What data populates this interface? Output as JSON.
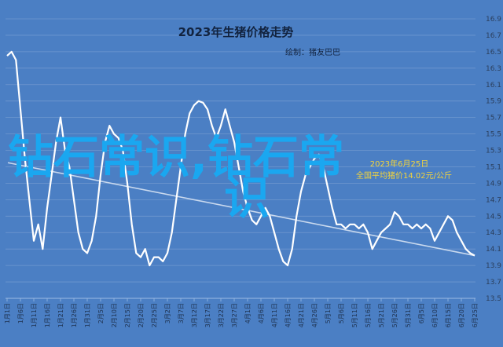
{
  "chart_data": {
    "type": "line",
    "title": "2023年生猪价格走势",
    "subtitle": "绘制：猪友巴巴",
    "annotation": [
      "2023年6月25日",
      "全国平均猪价14.02元/公斤"
    ],
    "watermark": [
      "钻石常识,钻石常",
      "识"
    ],
    "xlabel": "",
    "ylabel": "",
    "ylim": [
      13.5,
      16.9
    ],
    "yticks": [
      13.5,
      13.7,
      13.9,
      14.1,
      14.3,
      14.5,
      14.7,
      14.9,
      15.1,
      15.3,
      15.5,
      15.7,
      15.9,
      16.1,
      16.3,
      16.5,
      16.7,
      16.9
    ],
    "xticks": [
      "1月1日",
      "1月6日",
      "1月11日",
      "1月16日",
      "1月21日",
      "1月26日",
      "1月31日",
      "2月5日",
      "2月10日",
      "2月15日",
      "2月20日",
      "2月25日",
      "3月2日",
      "3月7日",
      "3月12日",
      "3月17日",
      "3月22日",
      "3月27日",
      "4月1日",
      "4月6日",
      "4月11日",
      "4月16日",
      "4月21日",
      "4月26日",
      "5月1日",
      "5月6日",
      "5月11日",
      "5月16日",
      "5月21日",
      "5月26日",
      "5月31日",
      "6月5日",
      "6月10日",
      "6月15日",
      "6月20日",
      "6月25日"
    ],
    "series": [
      {
        "color": "#ffffff",
        "values": [
          16.45,
          16.5,
          16.4,
          15.8,
          15.2,
          14.7,
          14.2,
          14.4,
          14.1,
          14.6,
          15.0,
          15.4,
          15.7,
          15.3,
          15.1,
          14.7,
          14.3,
          14.1,
          14.05,
          14.2,
          14.5,
          15.0,
          15.4,
          15.6,
          15.5,
          15.45,
          15.3,
          14.9,
          14.4,
          14.05,
          14.0,
          14.1,
          13.9,
          14.0,
          14.0,
          13.95,
          14.05,
          14.3,
          14.7,
          15.1,
          15.5,
          15.75,
          15.85,
          15.9,
          15.88,
          15.8,
          15.6,
          15.45,
          15.6,
          15.8,
          15.6,
          15.4,
          15.1,
          14.8,
          14.6,
          14.45,
          14.4,
          14.5,
          14.6,
          14.5,
          14.3,
          14.1,
          13.95,
          13.9,
          14.1,
          14.5,
          14.8,
          15.0,
          15.1,
          15.2,
          15.25,
          15.1,
          14.85,
          14.6,
          14.4,
          14.4,
          14.35,
          14.4,
          14.4,
          14.35,
          14.4,
          14.3,
          14.1,
          14.2,
          14.3,
          14.35,
          14.4,
          14.55,
          14.5,
          14.4,
          14.4,
          14.35,
          14.4,
          14.35,
          14.4,
          14.35,
          14.2,
          14.3,
          14.4,
          14.5,
          14.45,
          14.3,
          14.2,
          14.1,
          14.05,
          14.02
        ]
      }
    ],
    "trendline": {
      "color": "#c9d9ee",
      "start": 15.15,
      "end": 14.02
    },
    "grid": true
  }
}
